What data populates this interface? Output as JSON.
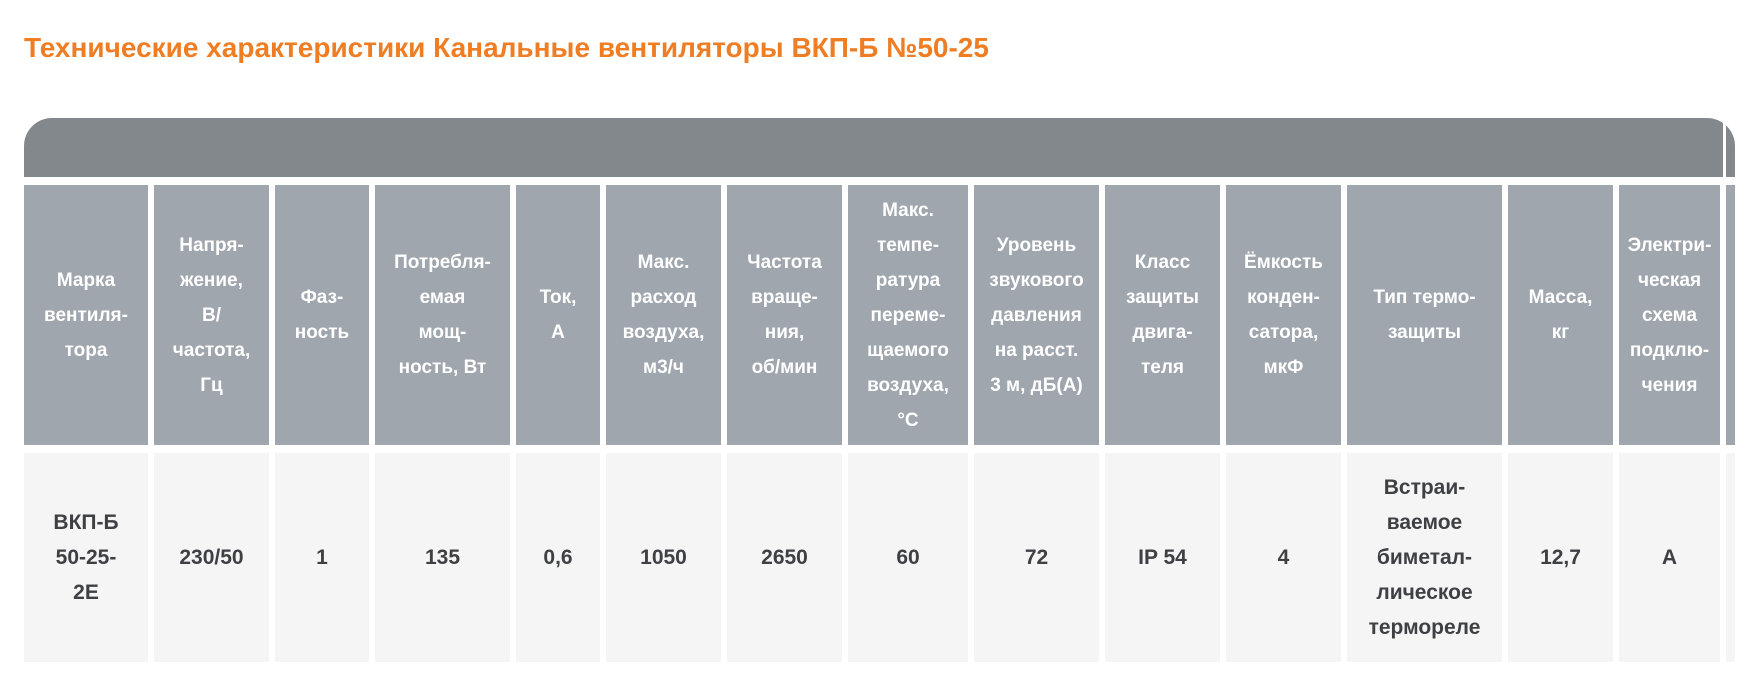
{
  "title": "Технические характеристики Канальные вентиляторы ВКП-Б №50-25",
  "colors": {
    "accent_orange": "#ef7d23",
    "cap_gray": "#82888c",
    "header_gray": "#a0a6ad",
    "cell_bg": "#f5f5f6",
    "text_dark": "#3f4043"
  },
  "table": {
    "columns": [
      {
        "header": "Марка\nвентиля-\nтора",
        "value": "ВКП-Б\n50-25-\n2Е"
      },
      {
        "header": "Напря-\nжение,\nВ/\nчастота,\nГц",
        "value": "230/50"
      },
      {
        "header": "Фаз-\nность",
        "value": "1"
      },
      {
        "header": "Потребля-\nемая\nмощ-\nность, Вт",
        "value": "135"
      },
      {
        "header": "Ток,\nА",
        "value": "0,6"
      },
      {
        "header": "Макс.\nрасход\nвоздуха,\nм3/ч",
        "value": "1050"
      },
      {
        "header": "Частота\nвраще-\nния,\nоб/мин",
        "value": "2650"
      },
      {
        "header": "Макс.\nтемпе-\nратура\nпереме-\nщаемого\nвоздуха,\n°С",
        "value": "60"
      },
      {
        "header": "Уровень\nзвукового\nдавления\nна расст.\n3 м, дБ(А)",
        "value": "72"
      },
      {
        "header": "Класс\nзащиты\nдвига-\nтеля",
        "value": "IP 54"
      },
      {
        "header": "Ёмкость\nконден-\nсатора,\nмкФ",
        "value": "4"
      },
      {
        "header": "Тип термо-\nзащиты",
        "value": "Встраи-\nваемое\nбиметал-\nлическое\nтермореле"
      },
      {
        "header": "Масса,\nкг",
        "value": "12,7"
      },
      {
        "header": "Электри-\nческая\nсхема\nподклю-\nчения",
        "value": "А"
      },
      {
        "header": "",
        "value": ""
      }
    ]
  }
}
